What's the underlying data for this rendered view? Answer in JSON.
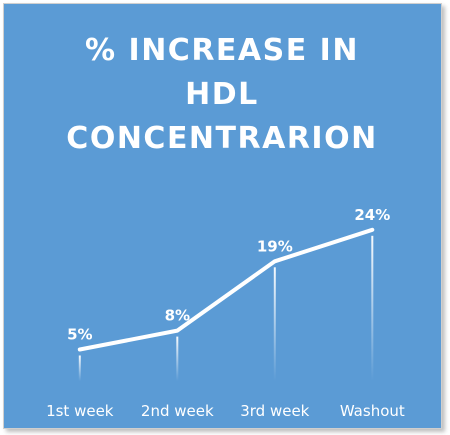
{
  "chart_data": {
    "type": "line",
    "title_lines": [
      "% INCREASE IN",
      "HDL",
      "CONCENTRARION"
    ],
    "categories": [
      "1st week",
      "2nd week",
      "3rd week",
      "Washout"
    ],
    "values": [
      5,
      8,
      19,
      24
    ],
    "data_labels": [
      "5%",
      "8%",
      "19%",
      "24%"
    ],
    "ylim": [
      0,
      40
    ],
    "grid": false,
    "legend": "none",
    "colors": {
      "background": "#5b9bd5",
      "line": "#ffffff",
      "text": "#ffffff"
    }
  }
}
